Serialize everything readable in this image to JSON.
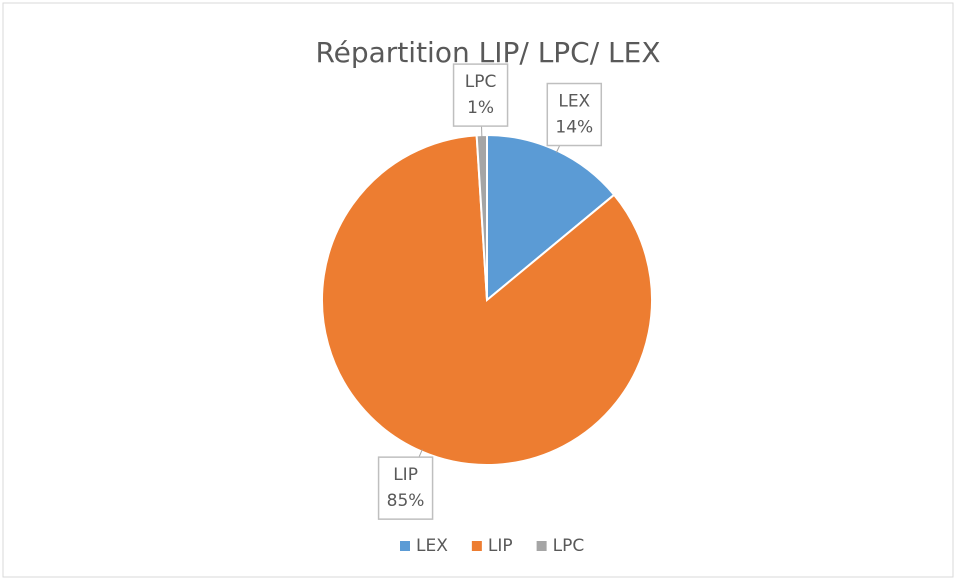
{
  "chart_data": {
    "type": "pie",
    "title": "Répartition LIP/ LPC/ LEX",
    "categories": [
      "LEX",
      "LIP",
      "LPC"
    ],
    "values": [
      14,
      85,
      1
    ],
    "value_labels": [
      "14%",
      "85%",
      "1%"
    ],
    "colors": [
      "#5b9bd5",
      "#ed7d31",
      "#a5a5a5"
    ],
    "legend": "bottom"
  }
}
